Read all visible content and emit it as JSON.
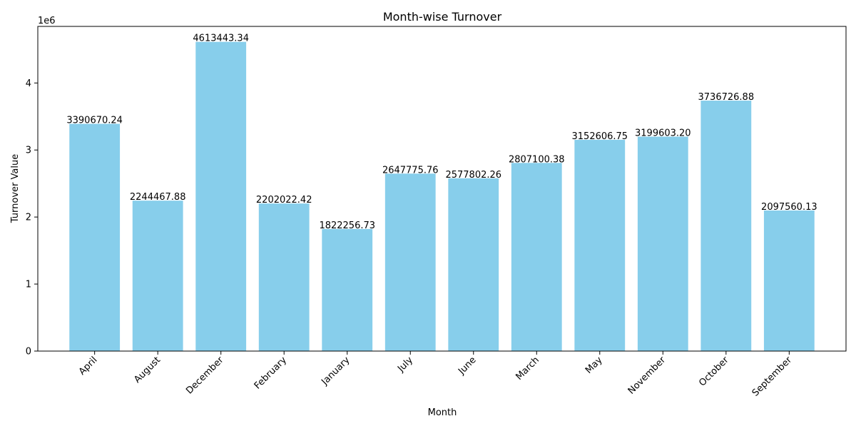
{
  "chart_data": {
    "type": "bar",
    "title": "Month-wise Turnover",
    "xlabel": "Month",
    "ylabel": "Turnover Value",
    "y_offset_label": "1e6",
    "categories": [
      "April",
      "August",
      "December",
      "February",
      "January",
      "July",
      "June",
      "March",
      "May",
      "November",
      "October",
      "September"
    ],
    "values": [
      3390670.24,
      2244467.88,
      4613443.34,
      2202022.42,
      1822256.73,
      2647775.76,
      2577802.26,
      2807100.38,
      3152606.75,
      3199603.2,
      3736726.88,
      2097560.13
    ],
    "value_labels": [
      "3390670.24",
      "2244467.88",
      "4613443.34",
      "2202022.42",
      "1822256.73",
      "2647775.76",
      "2577802.26",
      "2807100.38",
      "3152606.75",
      "3199603.20",
      "3736726.88",
      "2097560.13"
    ],
    "ylim": [
      0,
      4844115.5
    ],
    "yticks": [
      0,
      1000000,
      2000000,
      3000000,
      4000000
    ],
    "ytick_labels": [
      "0",
      "1",
      "2",
      "3",
      "4"
    ],
    "grid": false,
    "legend": "none",
    "bar_color": "#87CEEB",
    "x_tick_rotation": 45
  }
}
